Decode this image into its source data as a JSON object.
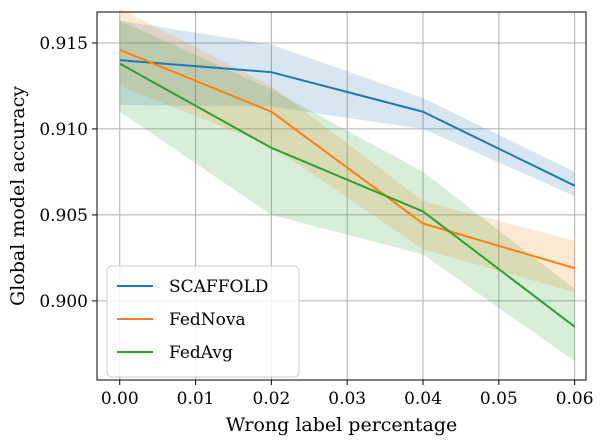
{
  "chart_data": {
    "type": "line",
    "xlabel": "Wrong label percentage",
    "ylabel": "Global model accuracy",
    "xlim": [
      -0.003,
      0.0615
    ],
    "ylim": [
      0.8954,
      0.9168
    ],
    "xticks": [
      0.0,
      0.01,
      0.02,
      0.03,
      0.04,
      0.05,
      0.06
    ],
    "xtick_labels": [
      "0.00",
      "0.01",
      "0.02",
      "0.03",
      "0.04",
      "0.05",
      "0.06"
    ],
    "yticks": [
      0.9,
      0.905,
      0.91,
      0.915
    ],
    "ytick_labels": [
      "0.900",
      "0.905",
      "0.910",
      "0.915"
    ],
    "grid": true,
    "legend_position": "lower-left",
    "x": [
      0.0,
      0.02,
      0.04,
      0.06
    ],
    "series": [
      {
        "name": "SCAFFOLD",
        "color": "#1f77b4",
        "values": [
          0.914,
          0.9133,
          0.911,
          0.9067
        ],
        "upper": [
          0.9163,
          0.9149,
          0.9118,
          0.9075
        ],
        "lower": [
          0.9114,
          0.9113,
          0.91,
          0.9061
        ]
      },
      {
        "name": "FedNova",
        "color": "#ff7f0e",
        "values": [
          0.9146,
          0.911,
          0.9045,
          0.9019
        ],
        "upper": [
          0.917,
          0.9125,
          0.9058,
          0.9035
        ],
        "lower": [
          0.9125,
          0.909,
          0.903,
          0.9005
        ]
      },
      {
        "name": "FedAvg",
        "color": "#2ca02c",
        "values": [
          0.9138,
          0.9089,
          0.9052,
          0.8985
        ],
        "upper": [
          0.9163,
          0.9123,
          0.9075,
          0.9007
        ],
        "lower": [
          0.911,
          0.905,
          0.9027,
          0.8965
        ]
      }
    ]
  }
}
